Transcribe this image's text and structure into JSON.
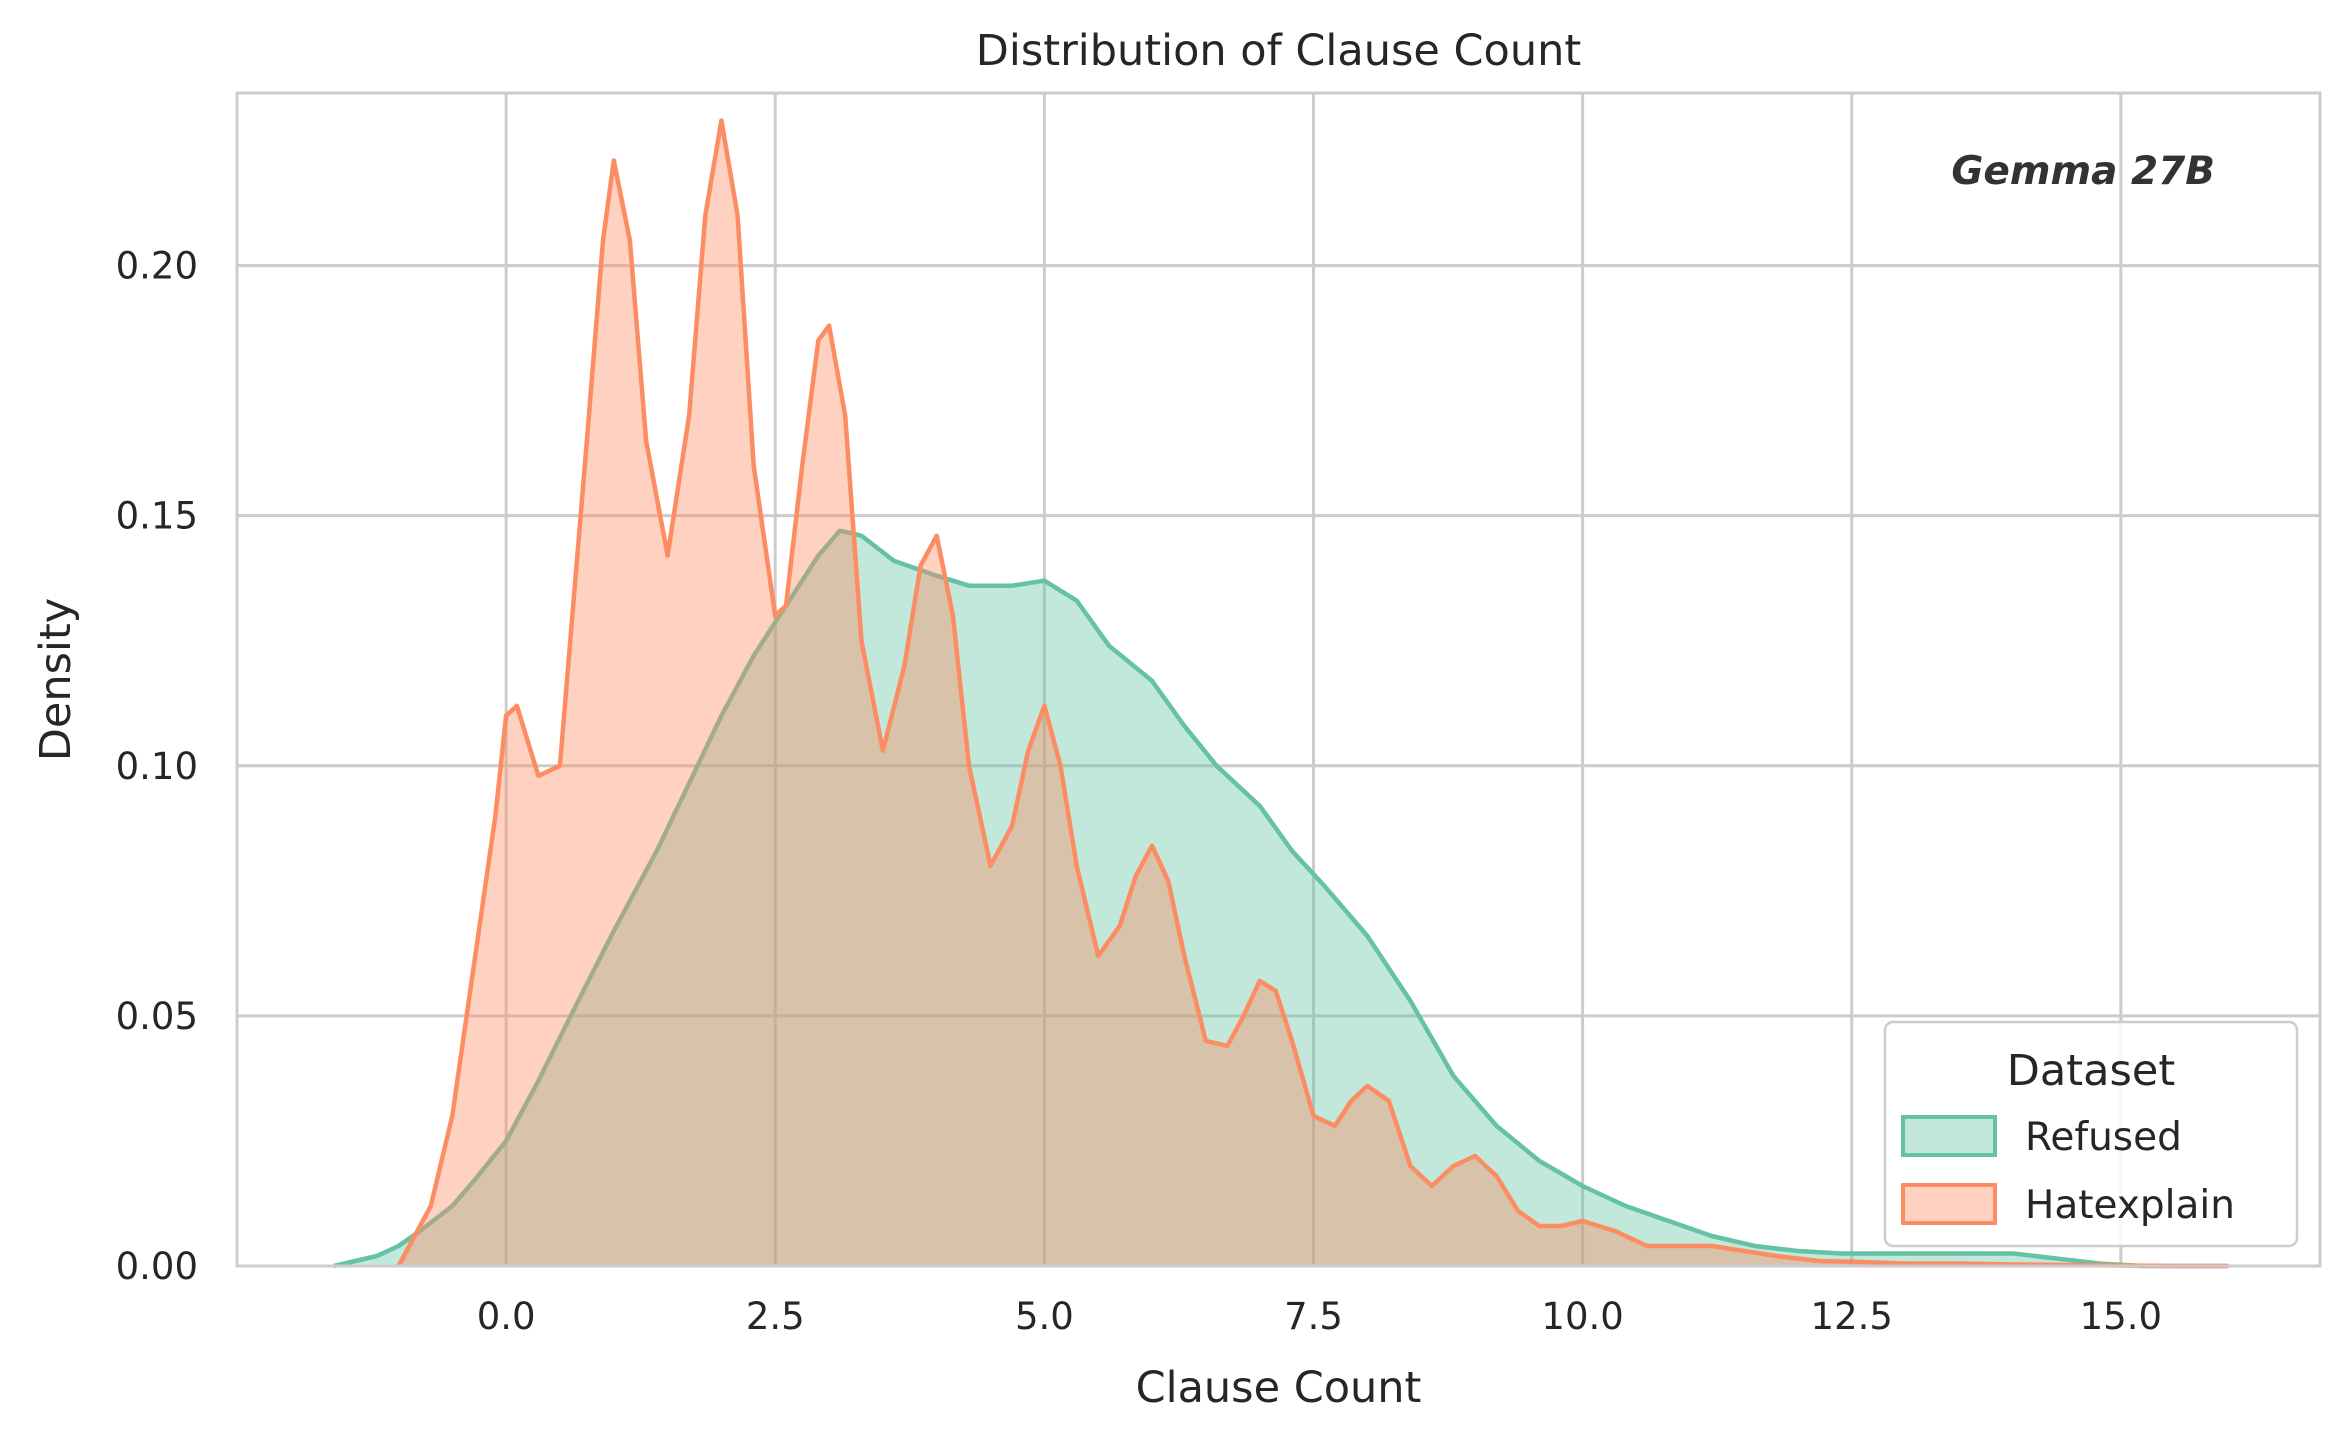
{
  "chart_data": {
    "type": "area",
    "title": "Distribution of Clause Count",
    "xlabel": "Clause Count",
    "ylabel": "Density",
    "xlim": [
      -2.5,
      16.85
    ],
    "ylim": [
      0,
      0.2345
    ],
    "xticks": [
      0.0,
      2.5,
      5.0,
      7.5,
      10.0,
      12.5,
      15.0
    ],
    "xtick_labels": [
      "0.0",
      "2.5",
      "5.0",
      "7.5",
      "10.0",
      "12.5",
      "15.0"
    ],
    "yticks": [
      0.0,
      0.05,
      0.1,
      0.15,
      0.2
    ],
    "ytick_labels": [
      "0.00",
      "0.05",
      "0.10",
      "0.15",
      "0.20"
    ],
    "grid": true,
    "annotation": "Gemma 27B",
    "legend": {
      "title": "Dataset",
      "placement": "lower-right"
    },
    "series": [
      {
        "name": "Refused",
        "color": "#66c2a5",
        "fill_opacity": 0.4,
        "x": [
          -1.6,
          -1.2,
          -1.0,
          -0.8,
          -0.5,
          -0.3,
          0.0,
          0.3,
          0.6,
          1.0,
          1.4,
          1.8,
          2.0,
          2.3,
          2.6,
          2.9,
          3.1,
          3.3,
          3.6,
          4.0,
          4.3,
          4.7,
          5.0,
          5.3,
          5.6,
          6.0,
          6.3,
          6.6,
          7.0,
          7.3,
          7.6,
          8.0,
          8.4,
          8.8,
          9.2,
          9.6,
          10.0,
          10.4,
          10.8,
          11.2,
          11.6,
          12.0,
          12.4,
          12.8,
          13.2,
          13.6,
          14.0,
          14.4,
          14.8,
          15.2,
          15.5,
          16.0
        ],
        "y": [
          0.0,
          0.002,
          0.004,
          0.007,
          0.012,
          0.017,
          0.025,
          0.037,
          0.05,
          0.067,
          0.083,
          0.101,
          0.11,
          0.122,
          0.132,
          0.142,
          0.147,
          0.146,
          0.141,
          0.138,
          0.136,
          0.136,
          0.137,
          0.133,
          0.124,
          0.117,
          0.108,
          0.1,
          0.092,
          0.083,
          0.076,
          0.066,
          0.053,
          0.038,
          0.028,
          0.021,
          0.016,
          0.012,
          0.009,
          0.006,
          0.004,
          0.003,
          0.0025,
          0.0025,
          0.0025,
          0.0025,
          0.0025,
          0.0015,
          0.0005,
          0.0,
          0.0,
          0.0
        ]
      },
      {
        "name": "Hatexplain",
        "color": "#fc8d62",
        "fill_opacity": 0.4,
        "x": [
          -1.0,
          -0.7,
          -0.5,
          -0.3,
          -0.1,
          0.0,
          0.1,
          0.3,
          0.5,
          0.75,
          0.9,
          1.0,
          1.15,
          1.3,
          1.5,
          1.7,
          1.85,
          2.0,
          2.15,
          2.3,
          2.5,
          2.6,
          2.75,
          2.9,
          3.0,
          3.15,
          3.3,
          3.5,
          3.7,
          3.85,
          4.0,
          4.15,
          4.3,
          4.5,
          4.7,
          4.85,
          5.0,
          5.15,
          5.3,
          5.5,
          5.7,
          5.85,
          6.0,
          6.15,
          6.3,
          6.5,
          6.7,
          6.85,
          7.0,
          7.15,
          7.3,
          7.5,
          7.7,
          7.85,
          8.0,
          8.2,
          8.4,
          8.6,
          8.8,
          9.0,
          9.2,
          9.4,
          9.6,
          9.8,
          10.0,
          10.3,
          10.6,
          10.9,
          11.2,
          11.5,
          11.8,
          12.2,
          12.6,
          13.0,
          13.5,
          14.0,
          14.5,
          15.0,
          15.5,
          16.0
        ],
        "y": [
          0.0,
          0.012,
          0.03,
          0.06,
          0.09,
          0.11,
          0.112,
          0.098,
          0.1,
          0.165,
          0.205,
          0.221,
          0.205,
          0.165,
          0.142,
          0.17,
          0.21,
          0.229,
          0.21,
          0.16,
          0.13,
          0.132,
          0.16,
          0.185,
          0.188,
          0.17,
          0.125,
          0.103,
          0.12,
          0.14,
          0.146,
          0.13,
          0.1,
          0.08,
          0.088,
          0.103,
          0.112,
          0.1,
          0.08,
          0.062,
          0.068,
          0.078,
          0.084,
          0.077,
          0.062,
          0.045,
          0.044,
          0.05,
          0.057,
          0.055,
          0.045,
          0.03,
          0.028,
          0.033,
          0.036,
          0.033,
          0.02,
          0.016,
          0.02,
          0.022,
          0.018,
          0.011,
          0.008,
          0.008,
          0.009,
          0.007,
          0.004,
          0.004,
          0.004,
          0.003,
          0.002,
          0.001,
          0.0008,
          0.0005,
          0.0005,
          0.0003,
          0.0002,
          0.0001,
          0.0,
          0.0
        ]
      }
    ]
  }
}
